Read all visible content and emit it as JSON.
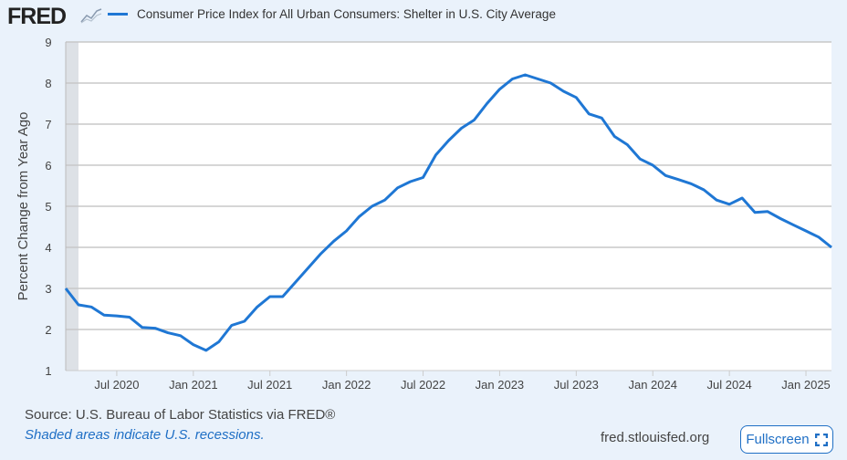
{
  "header": {
    "logo": "FRED",
    "fullscreen_label": "Fullscreen",
    "site": "fred.stlouisfed.org",
    "source": "Source: U.S. Bureau of Labor Statistics via FRED®",
    "shaded_note": "Shaded areas indicate U.S. recessions."
  },
  "colors": {
    "line": "#1f77d4",
    "recession": "#dde1e6"
  },
  "chart_data": {
    "type": "line",
    "title": "",
    "legend": [
      "Consumer Price Index for All Urban Consumers: Shelter in U.S. City Average"
    ],
    "ylabel": "Percent Change from Year Ago",
    "xlabel": "",
    "ylim": [
      1,
      9
    ],
    "yticks": [
      "1",
      "2",
      "3",
      "4",
      "5",
      "6",
      "7",
      "8",
      "9"
    ],
    "xticks": [
      {
        "label": "Jul 2020",
        "index": 4
      },
      {
        "label": "Jan 2021",
        "index": 10
      },
      {
        "label": "Jul 2021",
        "index": 16
      },
      {
        "label": "Jan 2022",
        "index": 22
      },
      {
        "label": "Jul 2022",
        "index": 28
      },
      {
        "label": "Jan 2023",
        "index": 34
      },
      {
        "label": "Jul 2023",
        "index": 40
      },
      {
        "label": "Jan 2024",
        "index": 46
      },
      {
        "label": "Jul 2024",
        "index": 52
      },
      {
        "label": "Jan 2025",
        "index": 58
      }
    ],
    "x_start": "2020-03",
    "frequency": "monthly",
    "recession": {
      "start_index": 0,
      "end_index": 1
    },
    "series": [
      {
        "name": "Consumer Price Index for All Urban Consumers: Shelter in U.S. City Average",
        "values": [
          3.0,
          2.6,
          2.55,
          2.35,
          2.33,
          2.3,
          2.05,
          2.03,
          1.92,
          1.85,
          1.63,
          1.49,
          1.7,
          2.1,
          2.2,
          2.55,
          2.8,
          2.8,
          3.15,
          3.5,
          3.85,
          4.15,
          4.4,
          4.75,
          5.0,
          5.15,
          5.45,
          5.6,
          5.7,
          6.25,
          6.6,
          6.9,
          7.1,
          7.5,
          7.85,
          8.1,
          8.2,
          8.1,
          8.0,
          7.8,
          7.65,
          7.25,
          7.15,
          6.7,
          6.5,
          6.15,
          6.0,
          5.75,
          5.65,
          5.55,
          5.4,
          5.15,
          5.05,
          5.2,
          4.85,
          4.87,
          4.7,
          4.55,
          4.4,
          4.25,
          4.0
        ]
      }
    ]
  }
}
